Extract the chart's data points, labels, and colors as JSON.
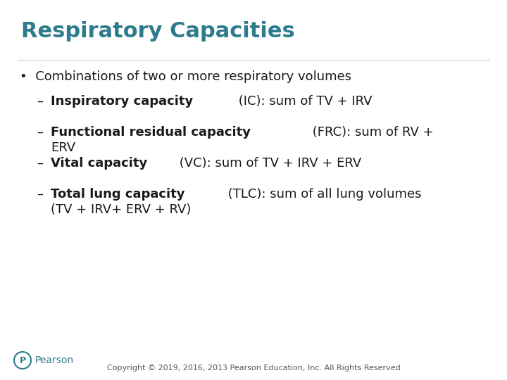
{
  "title": "Respiratory Capacities",
  "title_color": "#2E7B8C",
  "background_color": "#FFFFFF",
  "bullet_text": "Combinations of two or more respiratory volumes",
  "sub_bullets": [
    {
      "bold_part": "Inspiratory capacity",
      "normal_part": " (IC): sum of TV + IRV",
      "wrap_line2": null
    },
    {
      "bold_part": "Functional residual capacity",
      "normal_part": " (FRC): sum of RV +",
      "wrap_line2": "ERV"
    },
    {
      "bold_part": "Vital capacity",
      "normal_part": " (VC): sum of TV + IRV + ERV",
      "wrap_line2": null
    },
    {
      "bold_part": "Total lung capacity",
      "normal_part": " (TLC): sum of all lung volumes",
      "wrap_line2": "(TV + IRV+ ERV + RV)"
    }
  ],
  "footer_text": "Copyright © 2019, 2016, 2013 Pearson Education, Inc. All Rights Reserved",
  "footer_color": "#555555",
  "text_color": "#1a1a1a",
  "pearson_color": "#2E7B8C",
  "title_fontsize": 22,
  "body_fontsize": 13,
  "footer_fontsize": 8
}
